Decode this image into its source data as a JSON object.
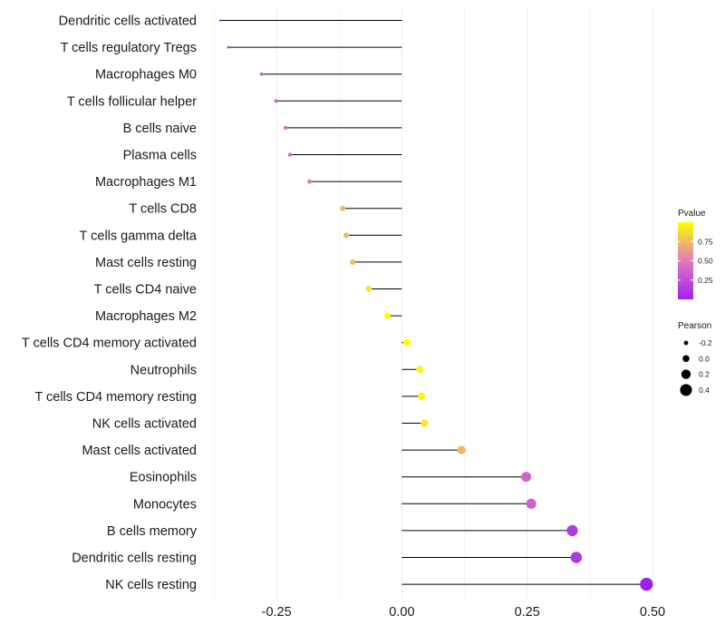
{
  "chart_data": {
    "type": "lollipop",
    "title": "",
    "xlabel": "",
    "ylabel": "",
    "xlim": [
      -0.375,
      0.5
    ],
    "x_ticks": [
      -0.25,
      0.0,
      0.25,
      0.5
    ],
    "x_tick_labels": [
      "-0.25",
      "0.00",
      "0.25",
      "0.50"
    ],
    "grid": true,
    "categories": [
      "Dendritic cells activated",
      "T cells regulatory  Tregs",
      "Macrophages M0",
      "T cells follicular helper",
      "B cells naive",
      "Plasma cells",
      "Macrophages M1",
      "T cells CD8",
      "T cells gamma delta",
      "Mast cells resting",
      "T cells CD4 naive",
      "Macrophages M2",
      "T cells CD4 memory activated",
      "Neutrophils",
      "T cells CD4 memory resting",
      "NK cells activated",
      "Mast cells activated",
      "Eosinophils",
      "Monocytes",
      "B cells memory",
      "Dendritic cells resting",
      "NK cells resting"
    ],
    "pearson": [
      -0.362,
      -0.346,
      -0.28,
      -0.251,
      -0.232,
      -0.223,
      -0.184,
      -0.118,
      -0.111,
      -0.098,
      -0.066,
      -0.029,
      0.01,
      0.036,
      0.039,
      0.045,
      0.119,
      0.248,
      0.258,
      0.34,
      0.348,
      0.488
    ],
    "pvalue": [
      0.05,
      0.1,
      0.35,
      0.37,
      0.4,
      0.42,
      0.5,
      0.72,
      0.73,
      0.75,
      0.9,
      0.98,
      1.0,
      0.95,
      0.94,
      0.93,
      0.72,
      0.38,
      0.35,
      0.15,
      0.12,
      0.0
    ],
    "color_legend": {
      "title": "Pvalue",
      "breaks": [
        0.25,
        0.5,
        0.75
      ],
      "labels": [
        "0.25",
        "0.50",
        "0.75"
      ],
      "low_color": "#A020F0",
      "mid_color": "#E07AC0",
      "high_color": "#FFFF00",
      "placement": "right"
    },
    "size_legend": {
      "title": "Pearson",
      "breaks": [
        -0.2,
        0.0,
        0.2,
        0.4
      ],
      "labels": [
        "-0.2",
        "0.0",
        "0.2",
        "0.4"
      ],
      "placement": "right"
    }
  }
}
